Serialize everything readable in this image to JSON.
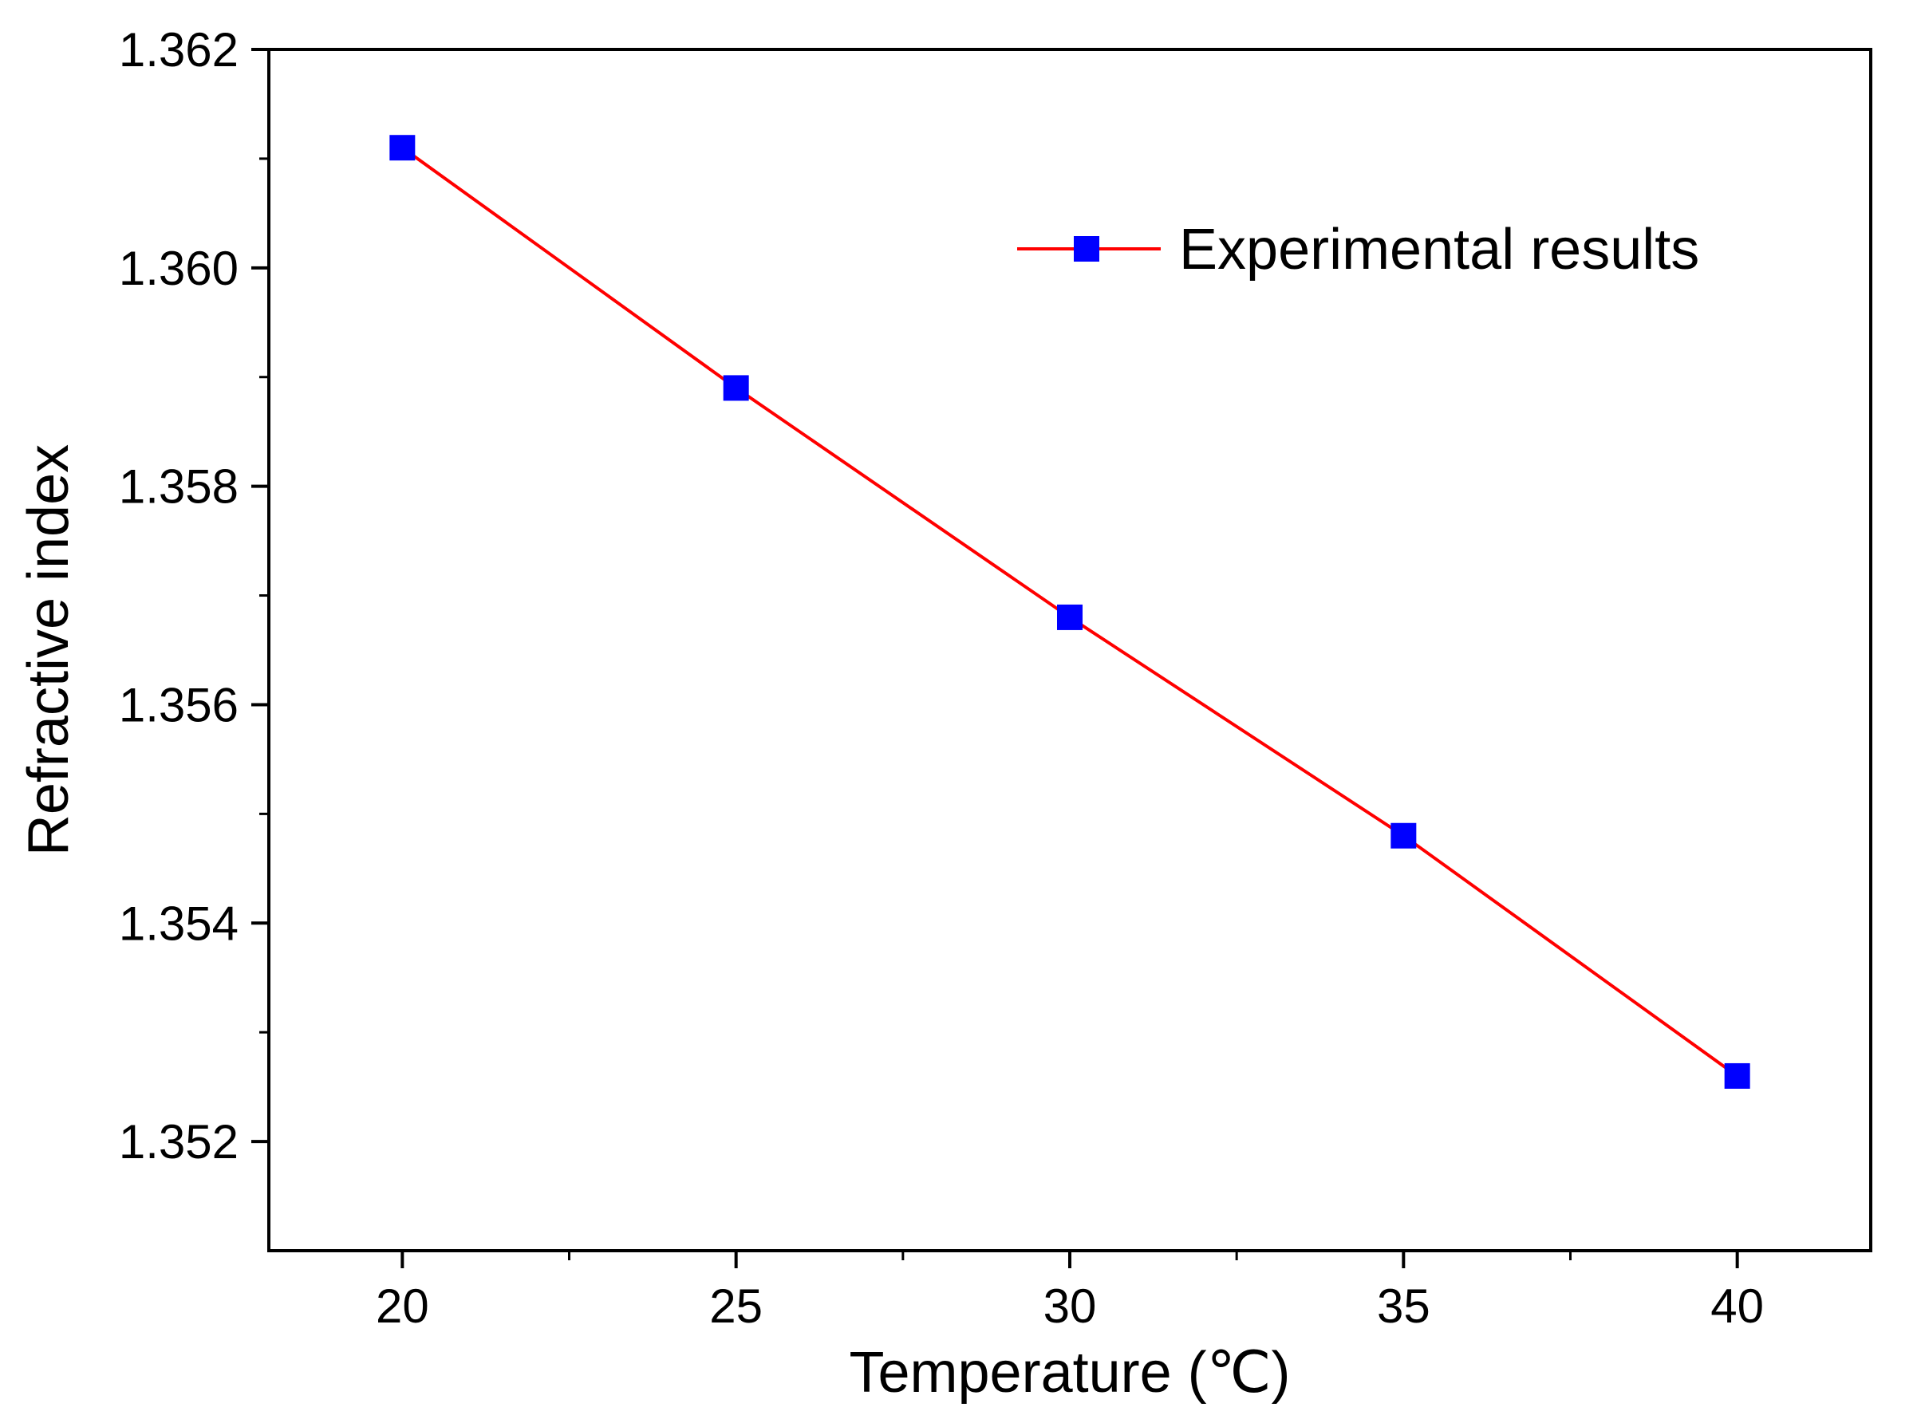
{
  "chart_data": {
    "type": "line",
    "title": "",
    "xlabel": "Temperature (℃)",
    "ylabel": "Refractive index",
    "xlim": [
      18,
      42
    ],
    "ylim": [
      1.351,
      1.362
    ],
    "x_ticks_major": [
      20,
      25,
      30,
      35,
      40
    ],
    "x_tick_labels": [
      "20",
      "25",
      "30",
      "35",
      "40"
    ],
    "x_ticks_minor": [
      22.5,
      27.5,
      32.5,
      37.5
    ],
    "y_ticks_major": [
      1.352,
      1.354,
      1.356,
      1.358,
      1.36,
      1.362
    ],
    "y_tick_labels": [
      "1.352",
      "1.354",
      "1.356",
      "1.358",
      "1.360",
      "1.362"
    ],
    "y_ticks_minor": [
      1.353,
      1.355,
      1.357,
      1.359,
      1.361
    ],
    "grid": false,
    "legend_position": "top-right",
    "series": [
      {
        "name": "Experimental results",
        "line_color": "#ff0000",
        "marker": "square",
        "marker_color": "#0000ff",
        "x": [
          20,
          25,
          30,
          35,
          40
        ],
        "y": [
          1.3611,
          1.3589,
          1.3568,
          1.3548,
          1.3526
        ]
      }
    ]
  }
}
